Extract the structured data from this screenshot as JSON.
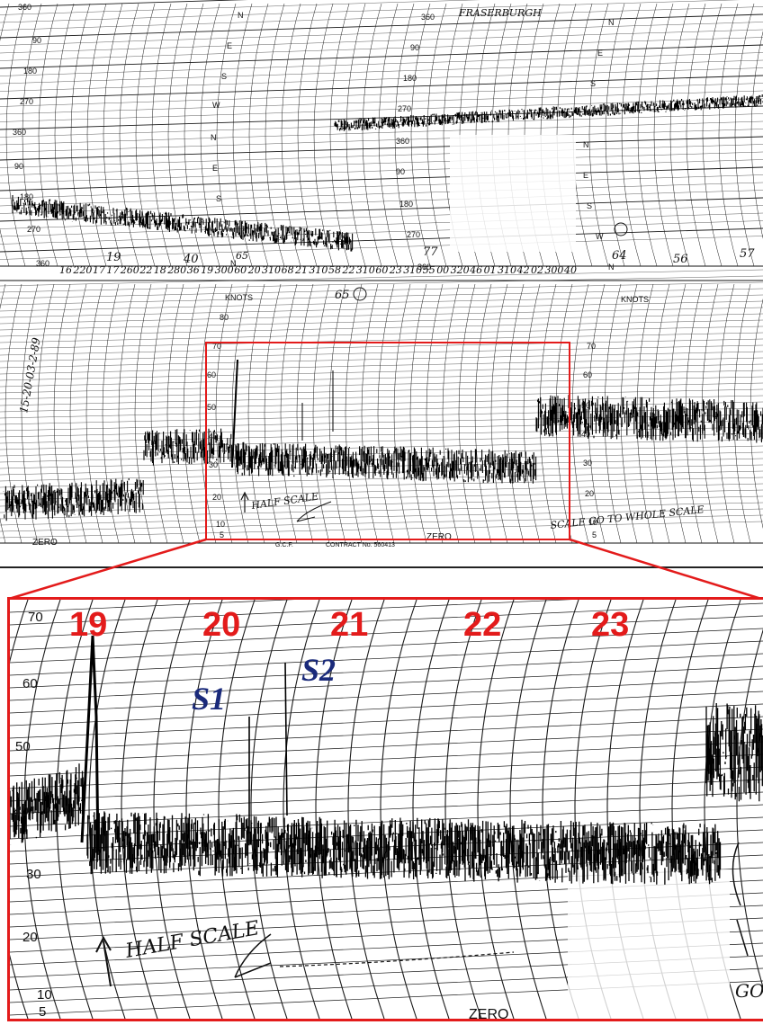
{
  "top_chart": {
    "station_label": "FRASERBURGH",
    "direction_scale_upper": [
      "360",
      "90",
      "180",
      "270",
      "360",
      "90",
      "180",
      "270",
      "360"
    ],
    "direction_scale_lower": [
      "360",
      "90",
      "180",
      "270",
      "360",
      "90",
      "180",
      "270",
      "360"
    ],
    "compass_marks": [
      "N",
      "E",
      "S",
      "W",
      "N",
      "E",
      "S",
      "W",
      "N"
    ],
    "compass_marks_right": [
      "N",
      "E",
      "S",
      "W",
      "N",
      "E",
      "S",
      "W",
      "N"
    ],
    "speed_unit_left": "KNOTS",
    "speed_unit_right": "KNOTS",
    "speed_scale": [
      "80",
      "70",
      "60",
      "50",
      "40",
      "30",
      "20",
      "10",
      "5"
    ],
    "speed_scale_right": [
      "70",
      "60",
      "50",
      "40",
      "30",
      "20",
      "10",
      "5"
    ],
    "zero_left": "ZERO",
    "zero_mid": "ZERO",
    "footer_left": "G.C.F.",
    "footer_contract": "CONTRACT No. 560413",
    "side_date": "15-20-03-2-89",
    "hour_annotations": [
      "16",
      "220",
      "17",
      "17",
      "260",
      "22",
      "18",
      "280",
      "36",
      "19",
      "300",
      "60",
      "20",
      "310",
      "68",
      "21",
      "310",
      "58",
      "22",
      "310",
      "60",
      "23",
      "310",
      "55",
      "00",
      "320",
      "46",
      "01",
      "310",
      "42",
      "02",
      "300",
      "40"
    ],
    "peak_annotations": [
      "19",
      "40",
      "65",
      "65",
      "77",
      "64",
      "56",
      "57"
    ],
    "half_scale_note": "HALF SCALE",
    "whole_scale_note": "SCALE GO TO WHOLE SCALE"
  },
  "zoom_panel": {
    "hour_labels": [
      "19",
      "20",
      "21",
      "22",
      "23"
    ],
    "spike_labels": [
      "S1",
      "S2"
    ],
    "speed_scale": [
      "70",
      "60",
      "50",
      "40",
      "30",
      "20",
      "10",
      "5"
    ],
    "zero_label": "ZERO",
    "half_scale_note": "HALF SCALE",
    "right_note": "GO"
  },
  "colors": {
    "highlight_box": "#e31b1b",
    "hour_labels": "#e31b1b",
    "spike_labels": "#1a2a7a",
    "trace": "#000000",
    "grid": "#1a1a1a"
  }
}
